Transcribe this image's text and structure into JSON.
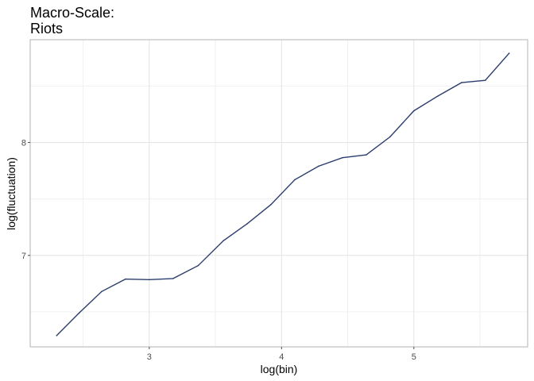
{
  "chart_data": {
    "type": "line",
    "title_lines": [
      "Macro-Scale:",
      "Riots"
    ],
    "xlabel": "log(bin)",
    "ylabel": "log(fluctuation)",
    "xlim": [
      2.1,
      5.86
    ],
    "ylim": [
      6.19,
      8.91
    ],
    "x_ticks": [
      3,
      4,
      5
    ],
    "x_minor_ticks": [
      2.5,
      3.5,
      4.5,
      5.5
    ],
    "y_ticks": [
      7,
      8
    ],
    "y_minor_ticks": [
      6.5,
      7.5,
      8.5
    ],
    "x_tick_labels": [
      "3",
      "4",
      "5"
    ],
    "y_tick_labels": [
      "7",
      "8"
    ],
    "grid": true,
    "line_color": "#2c3e6e",
    "series": [
      {
        "x": [
          2.3,
          2.47,
          2.64,
          2.82,
          3.0,
          3.18,
          3.37,
          3.56,
          3.74,
          3.92,
          4.1,
          4.28,
          4.46,
          4.64,
          4.82,
          5.0,
          5.18,
          5.36,
          5.54,
          5.72
        ],
        "y": [
          6.29,
          6.49,
          6.68,
          6.79,
          6.785,
          6.795,
          6.91,
          7.13,
          7.28,
          7.45,
          7.67,
          7.79,
          7.865,
          7.89,
          8.05,
          8.28,
          8.41,
          8.53,
          8.55,
          8.79
        ]
      }
    ]
  }
}
